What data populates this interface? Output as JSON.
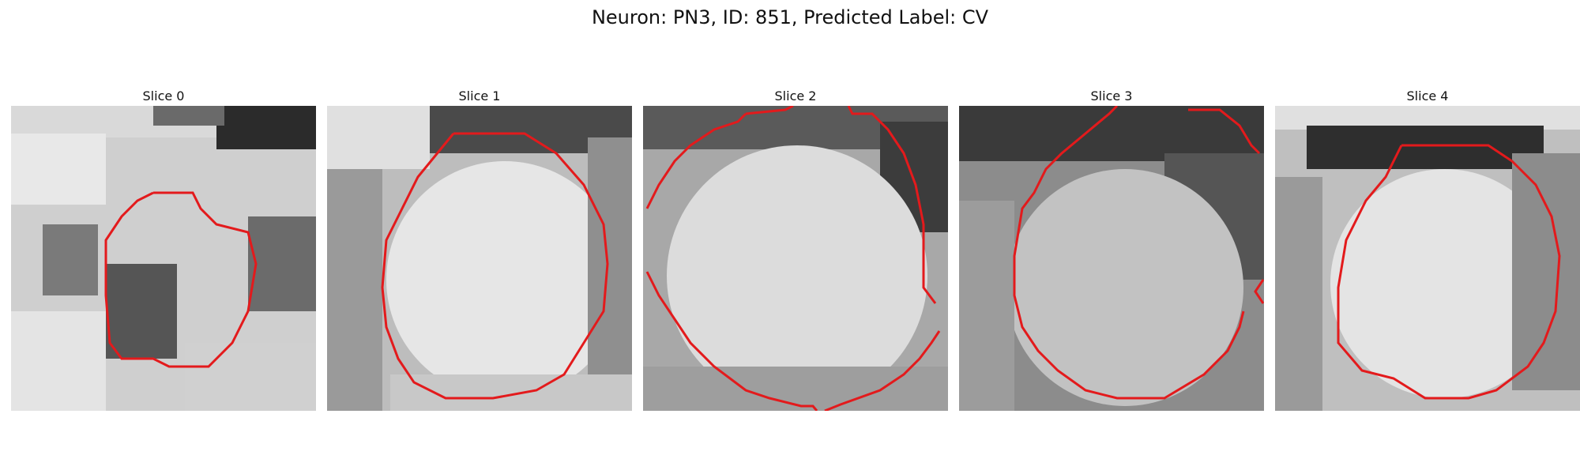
{
  "figure": {
    "title": "Neuron: PN3, ID: 851, Predicted Label: CV"
  },
  "panels": [
    {
      "title": "Slice 0"
    },
    {
      "title": "Slice 1"
    },
    {
      "title": "Slice 2"
    },
    {
      "title": "Slice 3"
    },
    {
      "title": "Slice 4"
    }
  ],
  "colors": {
    "contour": "#e31a1c",
    "background": "#ffffff"
  }
}
